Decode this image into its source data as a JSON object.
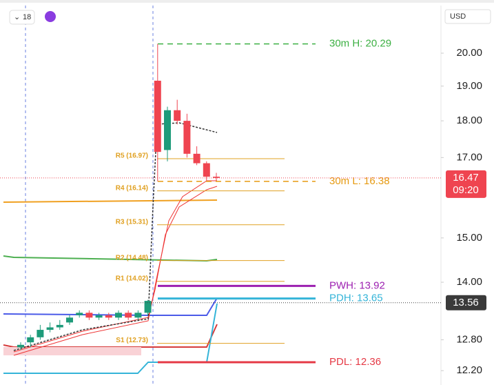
{
  "ui": {
    "interval": "18",
    "currency": "USD"
  },
  "chart_data": {
    "type": "candlestick",
    "log": true,
    "ylim": [
      11.93,
      21.54
    ],
    "yticks": [
      {
        "value": 20,
        "label": "20.00"
      },
      {
        "value": 19,
        "label": "19.00"
      },
      {
        "value": 18,
        "label": "18.00"
      },
      {
        "value": 17,
        "label": "17.00"
      },
      {
        "value": 15,
        "label": "15.00"
      },
      {
        "value": 14,
        "label": "14.00"
      },
      {
        "value": 12.8,
        "label": "12.80"
      },
      {
        "value": 12.2,
        "label": "12.20"
      }
    ],
    "up_color": "#1e9b7a",
    "down_color": "#ef4450",
    "open": [
      12.65,
      12.75,
      12.85,
      13.0,
      13.05,
      13.15,
      13.3,
      13.35,
      13.25,
      13.3,
      13.25,
      13.35,
      13.25,
      13.35,
      19.16,
      17.2,
      18.3,
      18.0,
      17.1,
      16.85,
      16.5
    ],
    "high": [
      12.75,
      12.9,
      13.1,
      13.15,
      13.2,
      13.3,
      13.4,
      13.4,
      13.35,
      13.35,
      13.4,
      13.4,
      13.4,
      13.62,
      20.29,
      18.4,
      18.6,
      18.2,
      17.3,
      16.9,
      16.6
    ],
    "low": [
      12.6,
      12.65,
      12.8,
      12.95,
      13.0,
      13.1,
      13.25,
      13.2,
      13.2,
      13.2,
      13.2,
      13.2,
      13.2,
      13.3,
      16.38,
      16.9,
      17.9,
      17.0,
      16.8,
      16.4,
      16.4
    ],
    "close": [
      12.7,
      12.85,
      13.0,
      13.05,
      13.1,
      13.25,
      13.35,
      13.25,
      13.3,
      13.25,
      13.35,
      13.25,
      13.35,
      13.6,
      17.15,
      18.3,
      18.0,
      17.1,
      16.85,
      16.5,
      16.47
    ],
    "pivots": [
      {
        "label": "R5 (16.97)",
        "value": 16.97
      },
      {
        "label": "R4 (16.14)",
        "value": 16.14
      },
      {
        "label": "R3 (15.31)",
        "value": 15.31
      },
      {
        "label": "R2 (14.48)",
        "value": 14.48
      },
      {
        "label": "R1 (14.02)",
        "value": 14.02
      },
      {
        "label": "S1 (12.73)",
        "value": 12.73
      }
    ],
    "pivot_color": "#e0a020",
    "levels": [
      {
        "label": "30m H: 20.29",
        "value": 20.29,
        "color": "#3cb043",
        "dash": true
      },
      {
        "label": "30m L: 16.38",
        "value": 16.38,
        "color": "#e69a10",
        "dash": true
      },
      {
        "label": "PWH: 13.92",
        "value": 13.92,
        "color": "#9c1fb0",
        "dash": false
      },
      {
        "label": "PDH: 13.65",
        "value": 13.65,
        "color": "#34b4d8",
        "dash": false
      },
      {
        "label": "PDL: 12.36",
        "value": 12.36,
        "color": "#e53945",
        "dash": false
      }
    ],
    "price_tags": [
      {
        "value": 16.47,
        "label": "16.47",
        "sub": "09:20",
        "color": "#ef4450"
      },
      {
        "value": 13.56,
        "label": "13.56",
        "color": "#3a3a3a"
      }
    ]
  }
}
